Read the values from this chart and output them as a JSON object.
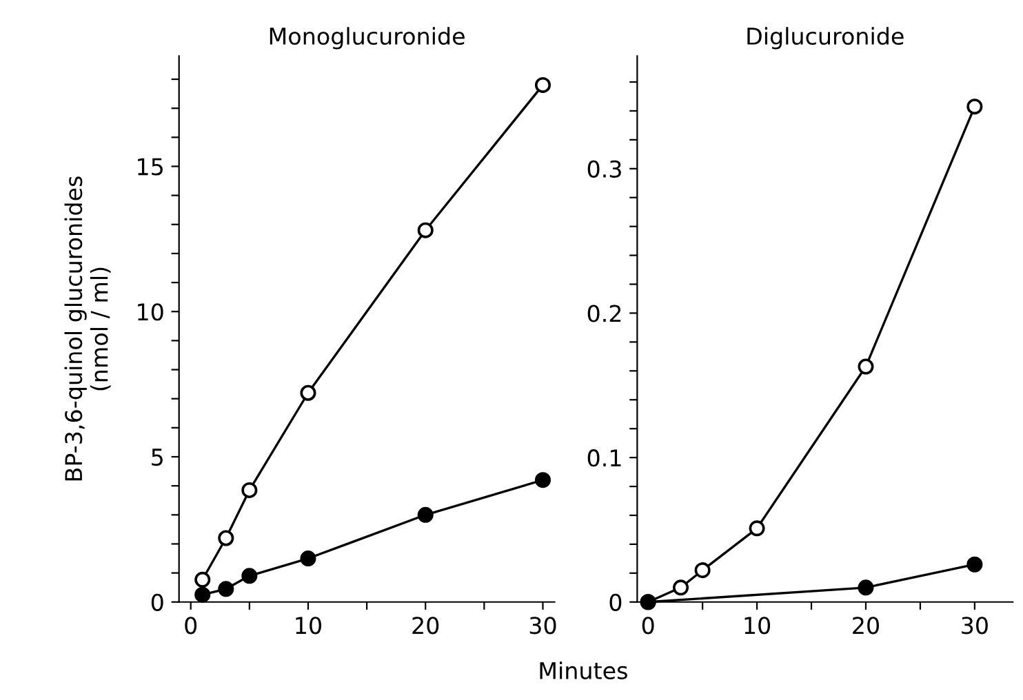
{
  "chart_data": [
    {
      "type": "line",
      "title": "Monoglucuronide",
      "xlabel": "Minutes",
      "ylabel": "BP-3,6-quinol glucuronides\n(nmol / ml)",
      "marker": "circle",
      "line_style": "solid",
      "grid": false,
      "xlim": [
        -1,
        31
      ],
      "ylim": [
        0,
        18.8
      ],
      "xticks": [
        0,
        {
          "value": 5,
          "label": null
        },
        10,
        {
          "value": 15,
          "label": null
        },
        20,
        {
          "value": 25,
          "label": null
        },
        30
      ],
      "yticks": [
        0,
        {
          "value": 1,
          "label": null
        },
        {
          "value": 2,
          "label": null
        },
        {
          "value": 3,
          "label": null
        },
        {
          "value": 4,
          "label": null
        },
        5,
        {
          "value": 6,
          "label": null
        },
        {
          "value": 7,
          "label": null
        },
        {
          "value": 8,
          "label": null
        },
        {
          "value": 9,
          "label": null
        },
        10,
        {
          "value": 11,
          "label": null
        },
        {
          "value": 12,
          "label": null
        },
        {
          "value": 13,
          "label": null
        },
        {
          "value": 14,
          "label": null
        },
        15,
        {
          "value": 16,
          "label": null
        },
        {
          "value": 17,
          "label": null
        },
        {
          "value": 18,
          "label": null
        }
      ],
      "series": [
        {
          "color": "#ffffff",
          "x": [
            1,
            3,
            5,
            10,
            20,
            30
          ],
          "values": [
            0.77,
            2.2,
            3.85,
            7.2,
            12.8,
            17.8
          ]
        },
        {
          "color": "#000000",
          "x": [
            1,
            3,
            5,
            10,
            20,
            30
          ],
          "values": [
            0.25,
            0.45,
            0.9,
            1.5,
            3.0,
            4.2
          ]
        }
      ]
    },
    {
      "type": "line",
      "title": "Diglucuronide",
      "marker": "circle",
      "line_style": "solid",
      "grid": false,
      "xlim": [
        -1,
        33.5
      ],
      "ylim": [
        0,
        0.378
      ],
      "xticks": [
        0,
        {
          "value": 5,
          "label": null
        },
        10,
        {
          "value": 15,
          "label": null
        },
        20,
        {
          "value": 25,
          "label": null
        },
        30
      ],
      "yticks": [
        0,
        {
          "value": 0.02,
          "label": null
        },
        {
          "value": 0.04,
          "label": null
        },
        {
          "value": 0.06,
          "label": null
        },
        {
          "value": 0.08,
          "label": null
        },
        {
          "value": 0.1,
          "label": "0.1"
        },
        {
          "value": 0.12,
          "label": null
        },
        {
          "value": 0.14,
          "label": null
        },
        {
          "value": 0.16,
          "label": null
        },
        {
          "value": 0.18,
          "label": null
        },
        {
          "value": 0.2,
          "label": "0.2"
        },
        {
          "value": 0.22,
          "label": null
        },
        {
          "value": 0.24,
          "label": null
        },
        {
          "value": 0.26,
          "label": null
        },
        {
          "value": 0.28,
          "label": null
        },
        {
          "value": 0.3,
          "label": "0.3"
        },
        {
          "value": 0.32,
          "label": null
        },
        {
          "value": 0.34,
          "label": null
        },
        {
          "value": 0.36,
          "label": null
        }
      ],
      "series": [
        {
          "color": "#ffffff",
          "x": [
            0,
            3,
            5,
            10,
            20,
            30
          ],
          "values": [
            0,
            0.01,
            0.022,
            0.051,
            0.163,
            0.343
          ]
        },
        {
          "color": "#000000",
          "x": [
            0,
            20,
            30
          ],
          "values": [
            0,
            0.01,
            0.026
          ]
        }
      ]
    }
  ]
}
